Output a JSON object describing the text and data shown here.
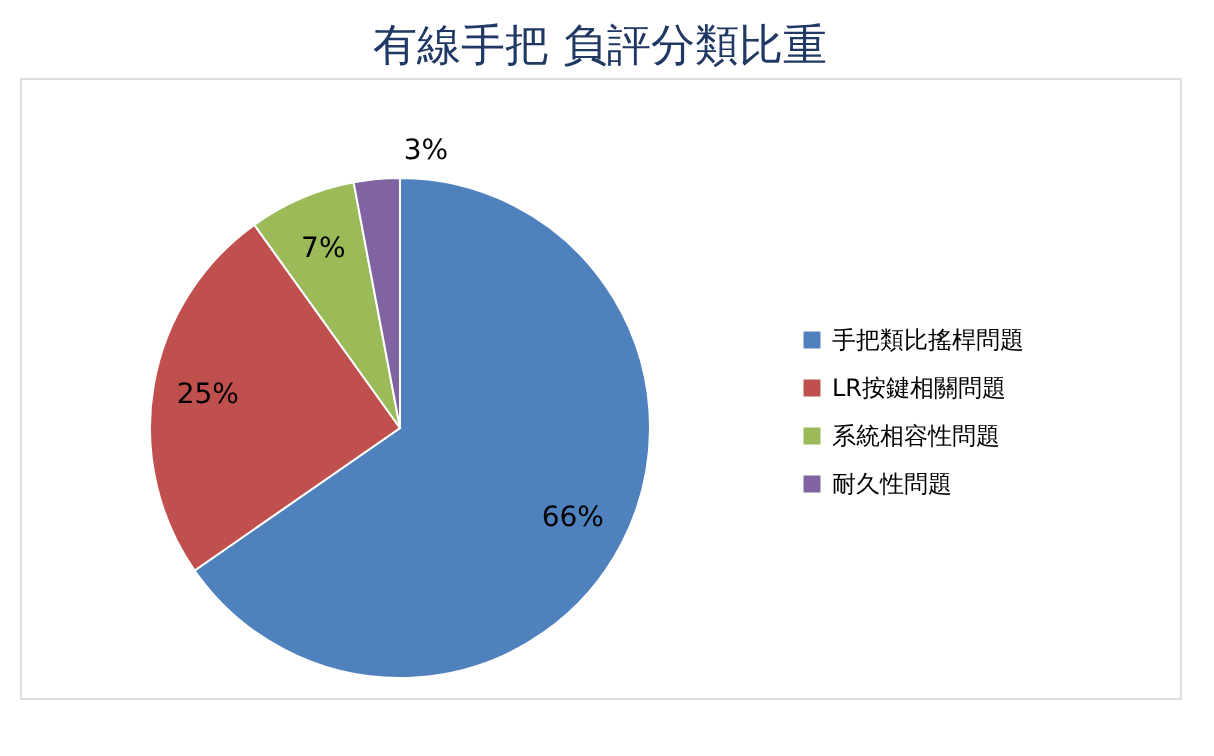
{
  "chart_data": {
    "type": "pie",
    "title": "有線手把 負評分類比重",
    "categories": [
      "手把類比搖桿問題",
      "LR按鍵相關問題",
      "系統相容性問題",
      "耐久性問題"
    ],
    "values": [
      66,
      25,
      7,
      3
    ],
    "colors": [
      "#4f81bd",
      "#c0504d",
      "#9bbb59",
      "#8064a2"
    ],
    "value_labels": [
      "66%",
      "25%",
      "7%",
      "3%"
    ],
    "legend": "right"
  }
}
